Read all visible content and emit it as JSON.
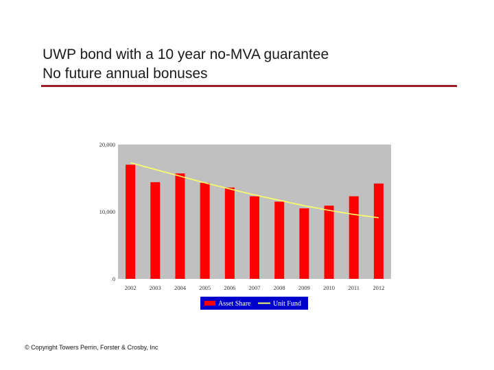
{
  "slide": {
    "title_line1": "UWP bond with a 10 year no-MVA guarantee",
    "title_line2": "No future annual bonuses",
    "rule_color": "#a01c24",
    "copyright": "© Copyright Towers Perrin, Forster & Crosby, Inc"
  },
  "chart_data": {
    "type": "bar",
    "categories": [
      "2002",
      "2003",
      "2004",
      "2005",
      "2006",
      "2007",
      "2008",
      "2009",
      "2010",
      "2011",
      "2012"
    ],
    "series": [
      {
        "name": "Asset Share",
        "kind": "bar",
        "color": "#ff0000",
        "values": [
          17000,
          14400,
          15700,
          14300,
          13600,
          12300,
          11500,
          10500,
          10900,
          12300,
          14200
        ]
      },
      {
        "name": "Unit Fund",
        "kind": "line",
        "color": "#ffff66",
        "values": [
          17300,
          16300,
          15300,
          14300,
          13400,
          12500,
          11700,
          10900,
          10200,
          9600,
          9100
        ]
      }
    ],
    "yticks": [
      {
        "value": 0,
        "label": "0"
      },
      {
        "value": 10000,
        "label": "10,000"
      },
      {
        "value": 20000,
        "label": "20,000"
      }
    ],
    "ylim": [
      0,
      20000
    ],
    "grid": false,
    "plot_background": "#c0c0c0",
    "legend_position": "bottom",
    "legend_background": "#0000cc",
    "title": "",
    "xlabel": "",
    "ylabel": ""
  }
}
